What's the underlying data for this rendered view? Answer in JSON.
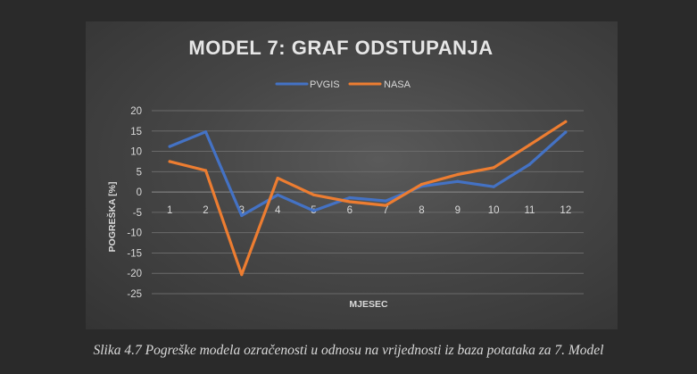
{
  "caption": "Slika 4.7 Pogreške modela ozračenosti u odnosu na vrijednosti iz baza potataka za 7. Model",
  "chart_data": {
    "type": "line",
    "title": "MODEL 7: GRAF ODSTUPANJA",
    "xlabel": "MJESEC",
    "ylabel": "POGREŠKA [%]",
    "categories": [
      "1",
      "2",
      "3",
      "4",
      "5",
      "6",
      "7",
      "8",
      "9",
      "10",
      "11",
      "12"
    ],
    "yticks": [
      "20",
      "15",
      "10",
      "5",
      "0",
      "-5",
      "-10",
      "-15",
      "-20",
      "-25"
    ],
    "ylim": [
      -25,
      20
    ],
    "grid": true,
    "legend_position": "top",
    "series": [
      {
        "name": "PVGIS",
        "color": "#4472c4",
        "values": [
          11.2,
          14.8,
          -5.8,
          -0.7,
          -4.6,
          -1.4,
          -2.2,
          1.4,
          2.6,
          1.3,
          6.8,
          14.7
        ]
      },
      {
        "name": "NASA",
        "color": "#ed7d31",
        "values": [
          7.5,
          5.3,
          -20.3,
          3.4,
          -0.7,
          -2.4,
          -3.3,
          1.9,
          4.3,
          6.0,
          11.6,
          17.3
        ]
      }
    ]
  }
}
